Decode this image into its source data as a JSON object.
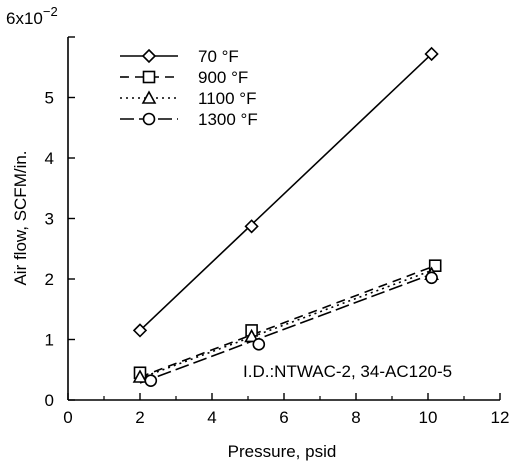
{
  "chart_data": {
    "type": "line",
    "title": "",
    "xlabel": "Pressure, psid",
    "ylabel": "Air flow, SCFM/in.",
    "y_multiplier_label": "6x10",
    "y_multiplier_exponent": "−2",
    "xlim": [
      0,
      12
    ],
    "ylim": [
      0,
      6
    ],
    "x_ticks": [
      0,
      2,
      4,
      6,
      8,
      10,
      12
    ],
    "y_ticks": [
      0,
      1,
      2,
      3,
      4,
      5
    ],
    "y_scale": 0.01,
    "grid": false,
    "legend_position": "top-left",
    "annotation": "I.D.:NTWAC-2, 34-AC120-5",
    "series": [
      {
        "name": "70 °F",
        "marker": "diamond",
        "dash": "solid",
        "points": [
          [
            2.0,
            1.15
          ],
          [
            5.1,
            2.87
          ],
          [
            10.1,
            5.72
          ]
        ],
        "fit": [
          [
            2.0,
            1.15
          ],
          [
            10.1,
            5.72
          ]
        ]
      },
      {
        "name": "900 °F",
        "marker": "square",
        "dash": "dashed",
        "points": [
          [
            2.0,
            0.45
          ],
          [
            5.1,
            1.15
          ],
          [
            10.2,
            2.22
          ]
        ],
        "fit": [
          [
            2.0,
            0.38
          ],
          [
            10.2,
            2.22
          ]
        ]
      },
      {
        "name": "1100 °F",
        "marker": "triangle",
        "dash": "dotted",
        "points": [
          [
            2.0,
            0.38
          ],
          [
            5.1,
            1.05
          ],
          [
            10.1,
            2.08
          ]
        ],
        "fit": [
          [
            2.0,
            0.36
          ],
          [
            10.1,
            2.14
          ]
        ]
      },
      {
        "name": "1300 °F",
        "marker": "circle",
        "dash": "longdash",
        "points": [
          [
            2.3,
            0.32
          ],
          [
            5.3,
            0.92
          ],
          [
            10.1,
            2.02
          ]
        ],
        "fit": [
          [
            2.0,
            0.28
          ],
          [
            10.1,
            2.08
          ]
        ]
      }
    ]
  }
}
